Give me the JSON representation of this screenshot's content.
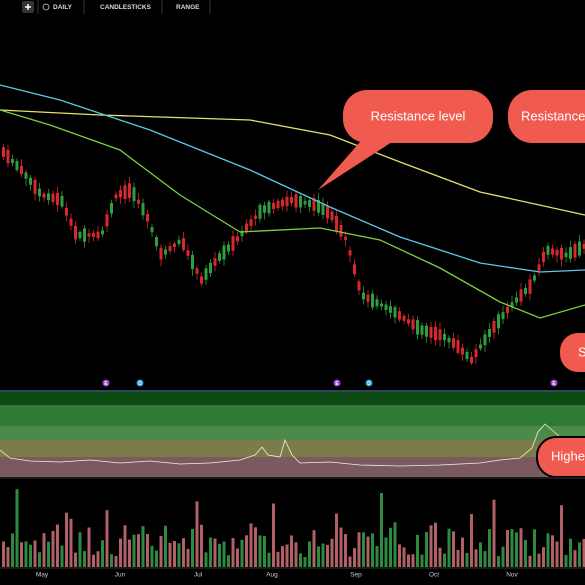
{
  "toolbar": {
    "interval": "DAILY",
    "chart_type": "CANDLESTICKS",
    "range": "RANGE"
  },
  "callouts": [
    "Resistance level",
    "Resistance",
    "S",
    "Highe"
  ],
  "events": [
    "E",
    "D",
    "E",
    "D",
    "E"
  ],
  "months": [
    "May",
    "Jun",
    "Jul",
    "Aug",
    "Sep",
    "Oct",
    "Nov"
  ]
}
